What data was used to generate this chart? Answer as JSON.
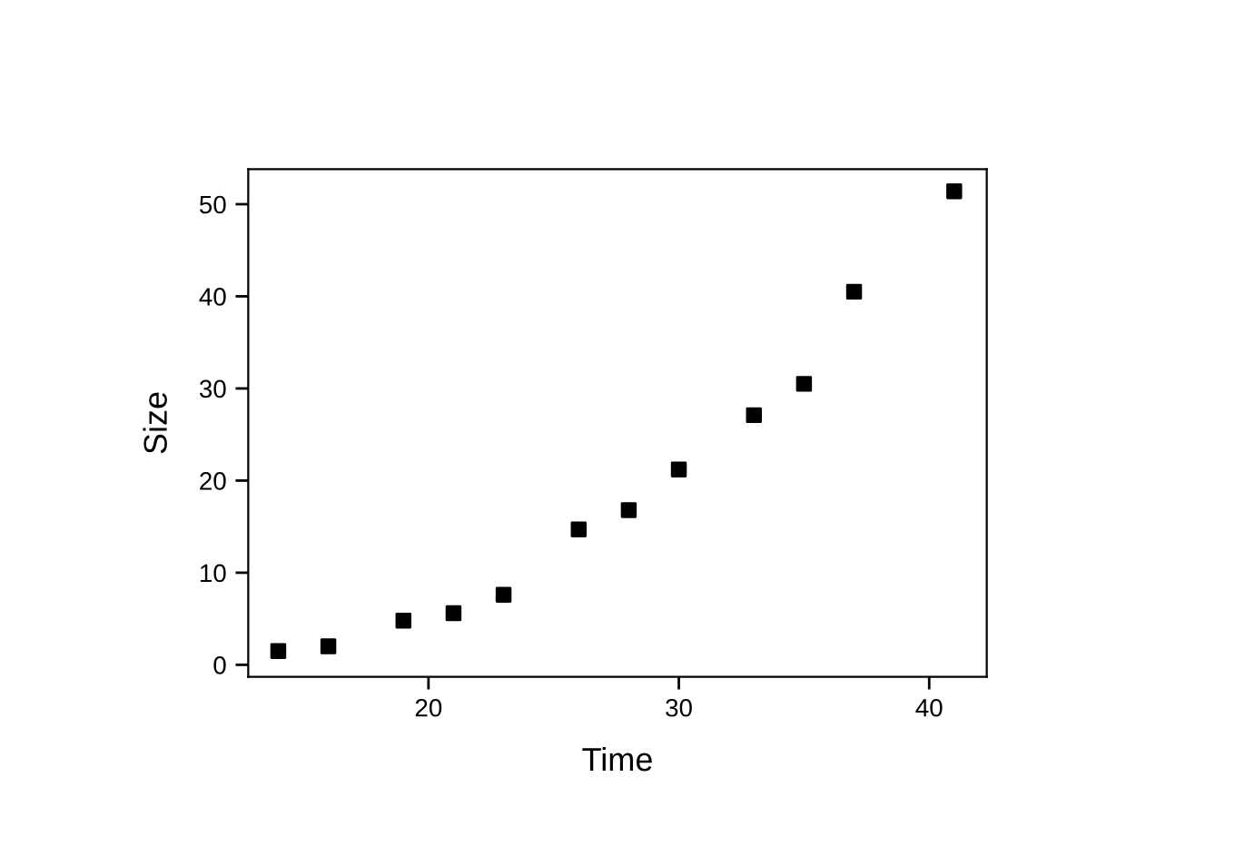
{
  "chart_data": {
    "type": "scatter",
    "xlabel": "Time",
    "ylabel": "Size",
    "x": [
      14,
      16,
      19,
      21,
      23,
      26,
      28,
      30,
      33,
      35,
      37,
      41
    ],
    "series": [
      {
        "color": "#000000",
        "values": [
          1.5,
          2.0,
          4.8,
          5.6,
          7.6,
          14.7,
          16.8,
          21.2,
          27.1,
          30.5,
          40.5,
          51.4
        ]
      }
    ],
    "xlim": [
      12.8,
      42.3
    ],
    "ylim": [
      -1.3,
      53.8
    ],
    "xticks": [
      20,
      30,
      40
    ],
    "yticks": [
      0,
      10,
      20,
      30,
      40,
      50
    ],
    "marker": "square",
    "grid": false,
    "legend": false
  }
}
